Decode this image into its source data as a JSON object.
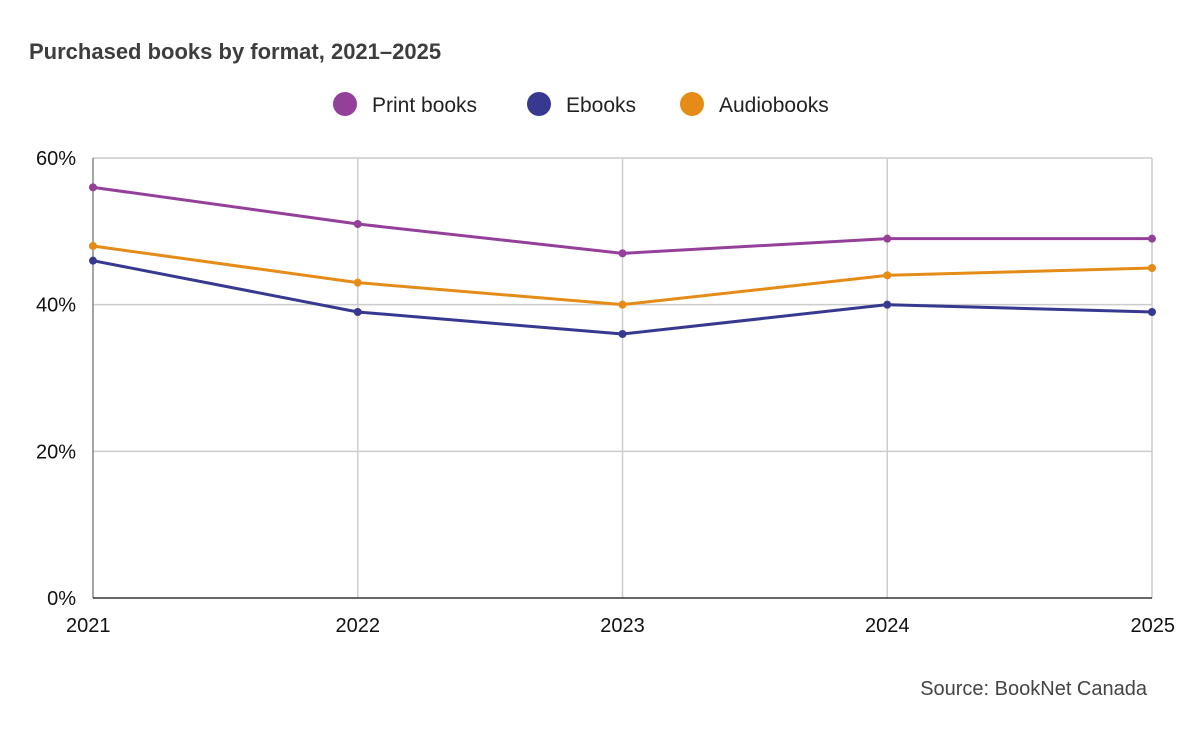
{
  "chart_data": {
    "type": "line",
    "title": "Purchased books by format, 2021–2025",
    "xlabel": "",
    "ylabel": "",
    "x": [
      "2021",
      "2022",
      "2023",
      "2024",
      "2025"
    ],
    "y_ticks": [
      "0%",
      "20%",
      "40%",
      "60%"
    ],
    "y_tick_values": [
      0,
      20,
      40,
      60
    ],
    "ylim": [
      0,
      60
    ],
    "grid": true,
    "legend_position": "top-center",
    "series": [
      {
        "name": "Print books",
        "color": "#94409a",
        "values": [
          56,
          51,
          47,
          49,
          49
        ]
      },
      {
        "name": "Ebooks",
        "color": "#36398f",
        "values": [
          46,
          39,
          36,
          40,
          39
        ]
      },
      {
        "name": "Audiobooks",
        "color": "#e58b17",
        "values": [
          48,
          43,
          40,
          44,
          45
        ]
      }
    ],
    "source": "Source: BookNet Canada"
  }
}
